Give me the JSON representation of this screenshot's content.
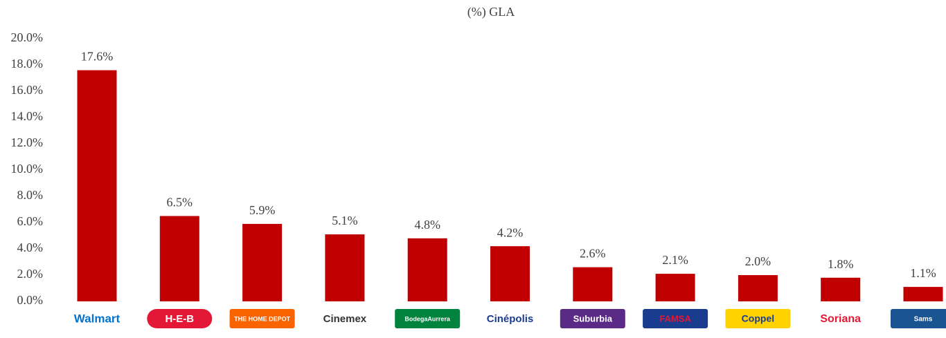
{
  "chart_data": {
    "type": "bar",
    "title": "(%) GLA",
    "categories": [
      "Walmart",
      "H-E-B",
      "THE HOME DEPOT",
      "Cinemex",
      "BodegaAurrera",
      "Cinépolis",
      "Suburbia",
      "FAMSA",
      "Coppel",
      "Soriana",
      "Sams"
    ],
    "values": [
      17.6,
      6.5,
      5.9,
      5.1,
      4.8,
      4.2,
      2.6,
      2.1,
      2.0,
      1.8,
      1.1
    ],
    "value_labels": [
      "17.6%",
      "6.5%",
      "5.9%",
      "5.1%",
      "4.8%",
      "4.2%",
      "2.6%",
      "2.1%",
      "2.0%",
      "1.8%",
      "1.1%"
    ],
    "color": "#c00000",
    "ylim": [
      0,
      20
    ],
    "yticks": [
      {
        "value": 0,
        "label": "0.0%"
      },
      {
        "value": 2,
        "label": "2.0%"
      },
      {
        "value": 4,
        "label": "4.0%"
      },
      {
        "value": 6,
        "label": "6.0%"
      },
      {
        "value": 8,
        "label": "8.0%"
      },
      {
        "value": 10,
        "label": "10.0%"
      },
      {
        "value": 12,
        "label": "12.0%"
      },
      {
        "value": 14,
        "label": "14.0%"
      },
      {
        "value": 16,
        "label": "16.0%"
      },
      {
        "value": 18,
        "label": "18.0%"
      },
      {
        "value": 20,
        "label": "20.0%"
      }
    ],
    "grid": false
  }
}
